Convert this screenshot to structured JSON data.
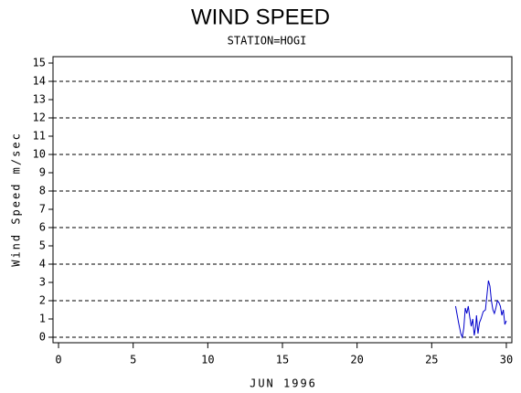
{
  "chart_data": {
    "type": "line",
    "title": "WIND SPEED",
    "subtitle": "STATION=HOGI",
    "x_label": "JUN 1996",
    "y_label": "Wind Speed m/sec",
    "xlim": [
      -0.37,
      30.37
    ],
    "xticks": [
      0,
      5,
      10,
      15,
      20,
      25,
      30
    ],
    "ylim": [
      -0.3,
      15.35
    ],
    "yticks": [
      0,
      1,
      2,
      3,
      4,
      5,
      6,
      7,
      8,
      9,
      10,
      11,
      12,
      13,
      14,
      15
    ],
    "grid": true,
    "series": [
      {
        "color": "#0000cc",
        "x": [
          26.6,
          26.8,
          26.95,
          27.05,
          27.15,
          27.25,
          27.35,
          27.45,
          27.55,
          27.65,
          27.75,
          27.85,
          27.95,
          28.0,
          28.1,
          28.2,
          28.3,
          28.45,
          28.6,
          28.7,
          28.8,
          28.9,
          29.0,
          29.1,
          29.2,
          29.3,
          29.4,
          29.5,
          29.6,
          29.7,
          29.8,
          29.9,
          30.0
        ],
        "values": [
          1.7,
          0.8,
          0.2,
          0.0,
          0.5,
          1.6,
          1.3,
          1.7,
          1.1,
          0.6,
          1.0,
          0.1,
          0.6,
          1.2,
          0.2,
          0.8,
          1.0,
          1.4,
          1.5,
          2.3,
          3.1,
          2.8,
          2.0,
          1.5,
          1.3,
          1.6,
          2.0,
          1.9,
          1.7,
          1.2,
          1.5,
          0.7,
          0.9
        ]
      }
    ]
  }
}
